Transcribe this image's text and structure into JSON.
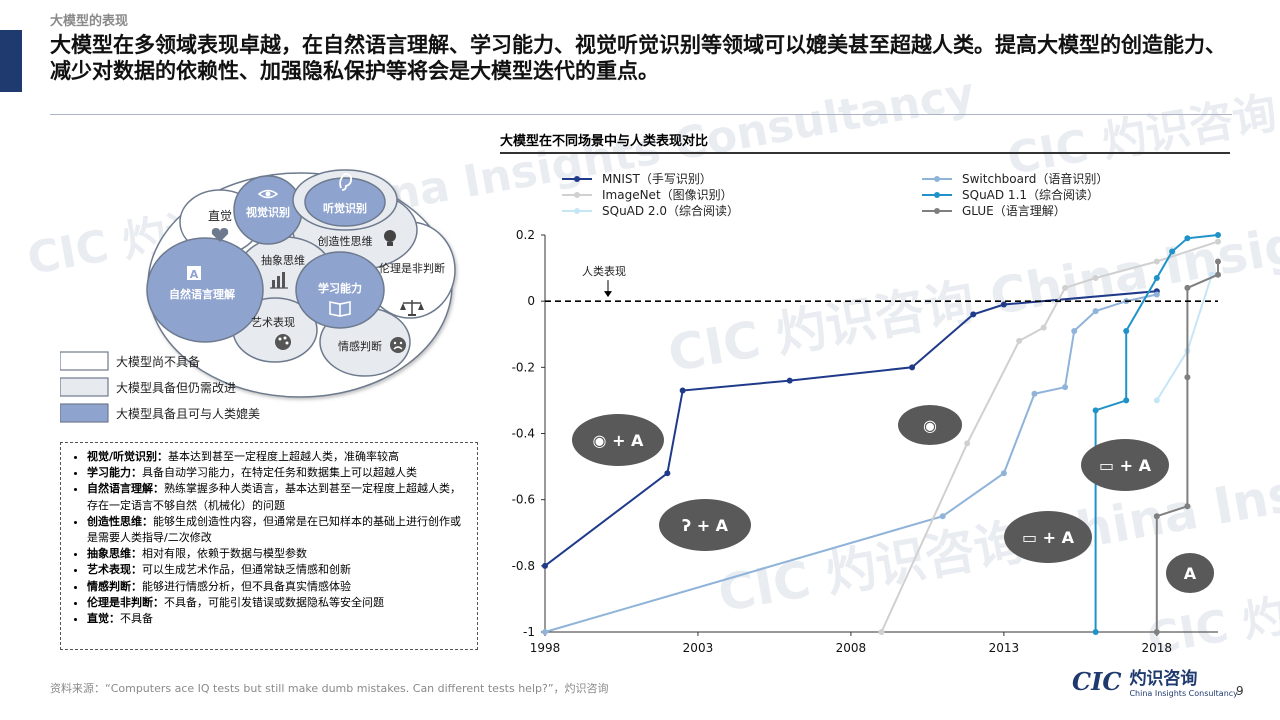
{
  "section_label": "大模型的表现",
  "headline": "大模型在多领域表现卓越，在自然语言理解、学习能力、视觉听觉识别等领域可以媲美甚至超越人类。提高大模型的创造能力、减少对数据的依赖性、加强隐私保护等将会是大模型迭代的重点。",
  "watermark": "CIC 灼识咨询 China Insights Consultancy",
  "brain": {
    "regions": {
      "intuition": "直觉",
      "vision": "视觉识别",
      "hearing": "听觉识别",
      "creative": "创造性思维",
      "abstract": "抽象思维",
      "ethics": "伦理是非判断",
      "nlu": "自然语言理解",
      "learning": "学习能力",
      "art": "艺术表现",
      "emotion": "情感判断"
    },
    "legend": [
      {
        "label": "大模型尚不具备",
        "color": "#ffffff"
      },
      {
        "label": "大模型具备但仍需改进",
        "color": "#e7eaee"
      },
      {
        "label": "大模型具备且可与人类媲美",
        "color": "#8fa3cf"
      }
    ]
  },
  "notes": [
    {
      "term": "视觉/听觉识别：",
      "text": "基本达到甚至一定程度上超越人类，准确率较高"
    },
    {
      "term": "学习能力：",
      "text": "具备自动学习能力，在特定任务和数据集上可以超越人类"
    },
    {
      "term": "自然语言理解：",
      "text": "熟练掌握多种人类语言，基本达到甚至一定程度上超越人类，存在一定语言不够自然（机械化）的问题"
    },
    {
      "term": "创造性思维：",
      "text": "能够生成创造性内容，但通常是在已知样本的基础上进行创作或是需要人类指导/二次修改"
    },
    {
      "term": "抽象思维：",
      "text": "相对有限，依赖于数据与模型参数"
    },
    {
      "term": "艺术表现：",
      "text": "可以生成艺术作品，但通常缺乏情感和创新"
    },
    {
      "term": "情感判断：",
      "text": "能够进行情感分析，但不具备真实情感体验"
    },
    {
      "term": "伦理是非判断：",
      "text": "不具备，可能引发错误或数据隐私等安全问题"
    },
    {
      "term": "直觉：",
      "text": "不具备"
    }
  ],
  "source": "资料来源：“Computers ace IQ tests but still make dumb mistakes. Can different tests help?”，灼识咨询",
  "logo": {
    "mark": "CIC",
    "cn": "灼识咨询",
    "en": "China Insights Consultancy"
  },
  "page_number": "9",
  "chart_data": {
    "type": "line",
    "title": "大模型在不同场景中与人类表现对比",
    "xlim": [
      1998,
      2020
    ],
    "ylim": [
      -1,
      0.2
    ],
    "x_ticks": [
      "1998",
      "2003",
      "2008",
      "2013",
      "2018"
    ],
    "y_ticks": [
      "0.2",
      "0",
      "-0.2",
      "-0.4",
      "-0.6",
      "-0.8",
      "-1"
    ],
    "human_line": {
      "label": "人类表现",
      "y": 0
    },
    "series": [
      {
        "name": "MNIST（手写识别）",
        "color": "#1f3a8a",
        "marker": true,
        "points": [
          [
            1998,
            -0.8
          ],
          [
            2002,
            -0.52
          ],
          [
            2002.5,
            -0.27
          ],
          [
            2006,
            -0.24
          ],
          [
            2010,
            -0.2
          ],
          [
            2012,
            -0.04
          ],
          [
            2013,
            -0.01
          ],
          [
            2018,
            0.03
          ]
        ]
      },
      {
        "name": "Switchboard（语音识别）",
        "color": "#8fb3d9",
        "marker": true,
        "points": [
          [
            1998,
            -1
          ],
          [
            2011,
            -0.65
          ],
          [
            2013,
            -0.52
          ],
          [
            2014,
            -0.28
          ],
          [
            2015,
            -0.26
          ],
          [
            2015.3,
            -0.09
          ],
          [
            2016,
            -0.03
          ],
          [
            2017,
            0
          ],
          [
            2018,
            0.02
          ]
        ]
      },
      {
        "name": "ImageNet（图像识别）",
        "color": "#d0d0d0",
        "marker": true,
        "points": [
          [
            2009,
            -1
          ],
          [
            2011.8,
            -0.43
          ],
          [
            2013.5,
            -0.12
          ],
          [
            2014.3,
            -0.08
          ],
          [
            2015,
            0.04
          ],
          [
            2016,
            0.07
          ],
          [
            2018,
            0.12
          ],
          [
            2020,
            0.18
          ]
        ]
      },
      {
        "name": "SQuAD 1.1（综合阅读）",
        "color": "#1f93c8",
        "marker": true,
        "points": [
          [
            2016,
            -1
          ],
          [
            2016,
            -0.33
          ],
          [
            2017,
            -0.3
          ],
          [
            2017,
            -0.09
          ],
          [
            2018,
            0.07
          ],
          [
            2018.5,
            0.15
          ],
          [
            2019,
            0.19
          ],
          [
            2020,
            0.2
          ]
        ]
      },
      {
        "name": "SQuAD 2.0（综合阅读）",
        "color": "#c6e6f5",
        "marker": true,
        "points": [
          [
            2018,
            -0.3
          ],
          [
            2019,
            -0.15
          ],
          [
            2019.8,
            0.08
          ]
        ]
      },
      {
        "name": "GLUE（语言理解）",
        "color": "#7f7f7f",
        "marker": true,
        "points": [
          [
            2018,
            -1
          ],
          [
            2018,
            -0.65
          ],
          [
            2019,
            -0.62
          ],
          [
            2019,
            -0.23
          ],
          [
            2019,
            0.04
          ],
          [
            2020,
            0.08
          ],
          [
            2020,
            0.12
          ]
        ]
      }
    ]
  }
}
